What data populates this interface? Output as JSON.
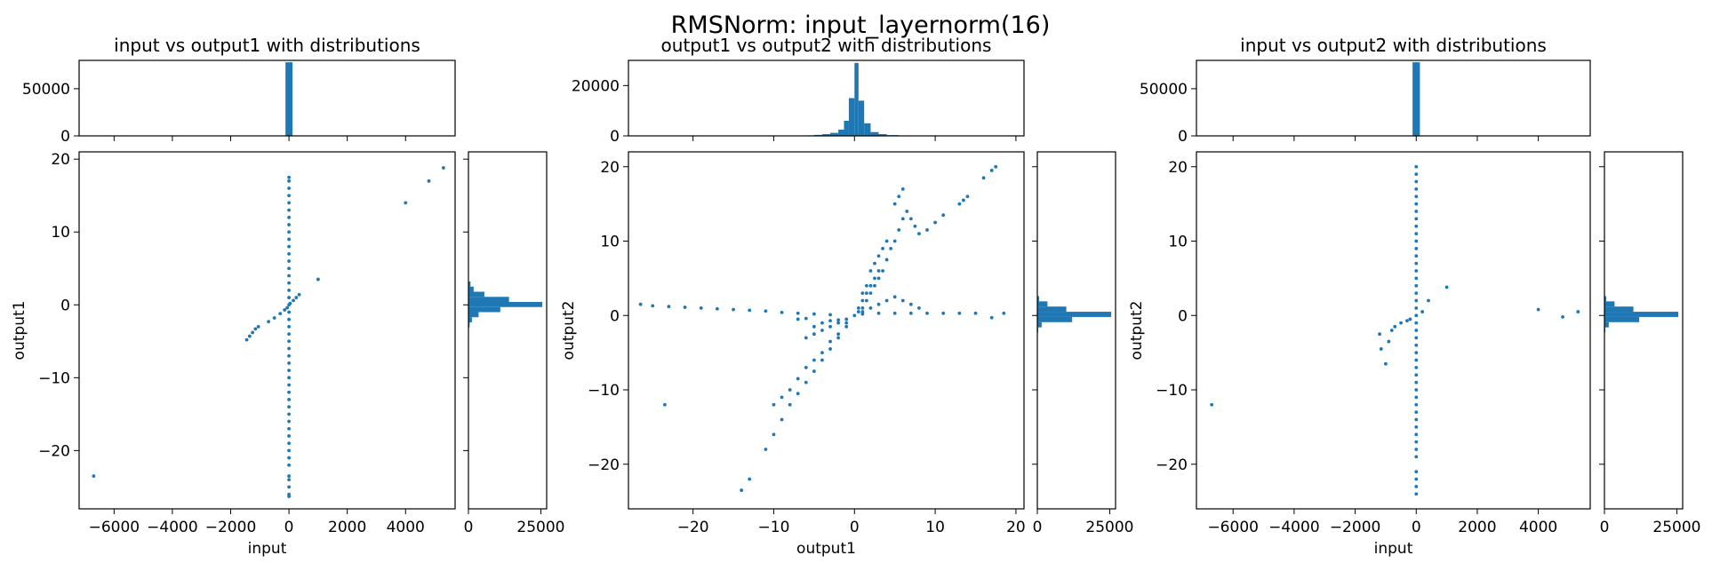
{
  "figure": {
    "title": "RMSNorm: input_layernorm(16)"
  },
  "chart_data": [
    {
      "type": "scatter",
      "title": "input vs output1 with distributions",
      "xlabel": "input",
      "ylabel": "output1",
      "xlim": [
        -7200,
        5700
      ],
      "ylim": [
        -28,
        21
      ],
      "xticks": [
        -6000,
        -4000,
        -2000,
        0,
        2000,
        4000
      ],
      "xtick_labels": [
        "−6000",
        "−4000",
        "−2000",
        "0",
        "2000",
        "4000"
      ],
      "yticks": [
        -20,
        -10,
        0,
        10,
        20
      ],
      "ytick_labels": [
        "−20",
        "−10",
        "0",
        "10",
        "20"
      ],
      "points": [
        [
          -6700,
          -23.5
        ],
        [
          -1450,
          -4.8
        ],
        [
          -1350,
          -4.3
        ],
        [
          -1250,
          -3.8
        ],
        [
          -1150,
          -3.3
        ],
        [
          -1050,
          -3.0
        ],
        [
          -700,
          -2.3
        ],
        [
          -500,
          -1.8
        ],
        [
          -300,
          -1.2
        ],
        [
          -150,
          -0.7
        ],
        [
          -60,
          -0.4
        ],
        [
          40,
          0.2
        ],
        [
          150,
          0.6
        ],
        [
          250,
          1.0
        ],
        [
          350,
          1.4
        ],
        [
          1000,
          3.5
        ],
        [
          4000,
          14.0
        ],
        [
          4800,
          17.0
        ],
        [
          5300,
          18.8
        ],
        [
          0,
          -26.3
        ],
        [
          0,
          -26
        ],
        [
          0,
          -25
        ],
        [
          0,
          -24
        ],
        [
          0,
          -23.5
        ],
        [
          0,
          -22
        ],
        [
          0,
          -21
        ],
        [
          0,
          -20
        ],
        [
          0,
          -19
        ],
        [
          0,
          -18
        ],
        [
          0,
          -17
        ],
        [
          0,
          -16
        ],
        [
          0,
          -15
        ],
        [
          0,
          -14
        ],
        [
          0,
          -13
        ],
        [
          0,
          -12
        ],
        [
          0,
          -11
        ],
        [
          0,
          -10
        ],
        [
          0,
          -9
        ],
        [
          0,
          -8
        ],
        [
          0,
          -7
        ],
        [
          0,
          -6
        ],
        [
          0,
          -5
        ],
        [
          0,
          -4
        ],
        [
          0,
          -3
        ],
        [
          0,
          -2
        ],
        [
          0,
          -1
        ],
        [
          0,
          0
        ],
        [
          0,
          1
        ],
        [
          0,
          2
        ],
        [
          0,
          3
        ],
        [
          0,
          4
        ],
        [
          0,
          5
        ],
        [
          0,
          6
        ],
        [
          0,
          7
        ],
        [
          0,
          8
        ],
        [
          0,
          9
        ],
        [
          0,
          10
        ],
        [
          0,
          11
        ],
        [
          0,
          12
        ],
        [
          0,
          13
        ],
        [
          0,
          14
        ],
        [
          0,
          15
        ],
        [
          0,
          16
        ],
        [
          0,
          17
        ],
        [
          0,
          17.5
        ]
      ],
      "top_hist": {
        "ylim": [
          0,
          80000
        ],
        "yticks": [
          0,
          50000
        ],
        "ytick_labels": [
          "0",
          "50000"
        ],
        "bins": [
          [
            -120,
            120,
            78000
          ]
        ]
      },
      "side_hist": {
        "xlim": [
          0,
          27000
        ],
        "xticks": [
          0,
          25000
        ],
        "xtick_labels": [
          "0",
          "25000"
        ],
        "bins": [
          [
            2.5,
            3.2,
            700
          ],
          [
            1.8,
            2.5,
            1800
          ],
          [
            1.1,
            1.8,
            5500
          ],
          [
            0.4,
            1.1,
            14000
          ],
          [
            -0.3,
            0.4,
            25500
          ],
          [
            -1.0,
            -0.3,
            11000
          ],
          [
            -1.7,
            -1.0,
            3500
          ],
          [
            -2.4,
            -1.7,
            1200
          ],
          [
            -3.1,
            -2.4,
            400
          ]
        ]
      }
    },
    {
      "type": "scatter",
      "title": "output1 vs output2 with distributions",
      "xlabel": "output1",
      "ylabel": "output2",
      "xlim": [
        -28,
        21
      ],
      "ylim": [
        -26,
        22
      ],
      "xticks": [
        -20,
        -10,
        0,
        10,
        20
      ],
      "xtick_labels": [
        "−20",
        "−10",
        "0",
        "10",
        "20"
      ],
      "yticks": [
        -20,
        -10,
        0,
        10,
        20
      ],
      "ytick_labels": [
        "−20",
        "−10",
        "0",
        "10",
        "20"
      ],
      "points": [
        [
          -26.5,
          1.5
        ],
        [
          -25,
          1.3
        ],
        [
          -23,
          1.2
        ],
        [
          -21,
          1.1
        ],
        [
          -19,
          1.0
        ],
        [
          -17,
          0.9
        ],
        [
          -15,
          0.8
        ],
        [
          -13,
          0.7
        ],
        [
          -11,
          0.6
        ],
        [
          -9,
          0.4
        ],
        [
          -7,
          0.3
        ],
        [
          -5,
          0.2
        ],
        [
          -3,
          0.1
        ],
        [
          -23.5,
          -12
        ],
        [
          -14,
          -23.5
        ],
        [
          -13,
          -22
        ],
        [
          -11,
          -18
        ],
        [
          -10,
          -16
        ],
        [
          -9,
          -14
        ],
        [
          -8,
          -12
        ],
        [
          -7,
          -10.5
        ],
        [
          -6,
          -9
        ],
        [
          -5,
          -7.5
        ],
        [
          -4,
          -6
        ],
        [
          -3,
          -4.5
        ],
        [
          -2,
          -3
        ],
        [
          -1,
          -1.5
        ],
        [
          -10,
          -12
        ],
        [
          -9,
          -11
        ],
        [
          -8,
          -10
        ],
        [
          -7,
          -8.5
        ],
        [
          -6,
          -7
        ],
        [
          -5,
          -6
        ],
        [
          -4,
          -5
        ],
        [
          -3,
          -3.5
        ],
        [
          -2,
          -2.5
        ],
        [
          -1,
          -1
        ],
        [
          -6,
          -3
        ],
        [
          -5,
          -2.5
        ],
        [
          -4,
          -2
        ],
        [
          -3,
          -1.5
        ],
        [
          -2,
          -1
        ],
        [
          -1,
          -0.5
        ],
        [
          -7,
          -0.5
        ],
        [
          -6,
          -0.4
        ],
        [
          -5,
          -1.5
        ],
        [
          -4,
          -1
        ],
        [
          -3,
          -0.7
        ],
        [
          -2,
          -0.6
        ],
        [
          0,
          0
        ],
        [
          0.5,
          0.5
        ],
        [
          1,
          1
        ],
        [
          1.5,
          2
        ],
        [
          2,
          3
        ],
        [
          2.5,
          4
        ],
        [
          3,
          5
        ],
        [
          3.5,
          6
        ],
        [
          4,
          7.5
        ],
        [
          4.5,
          9
        ],
        [
          5,
          10
        ],
        [
          5.5,
          11.5
        ],
        [
          6,
          13
        ],
        [
          0.5,
          1
        ],
        [
          1,
          2
        ],
        [
          1.5,
          3
        ],
        [
          2,
          4
        ],
        [
          2.5,
          5
        ],
        [
          3,
          6
        ],
        [
          1,
          0.5
        ],
        [
          2,
          1
        ],
        [
          3,
          1.5
        ],
        [
          4,
          2
        ],
        [
          5,
          2.5
        ],
        [
          6,
          2
        ],
        [
          7,
          1.5
        ],
        [
          8,
          1
        ],
        [
          1,
          0.2
        ],
        [
          3,
          0.3
        ],
        [
          5,
          0.3
        ],
        [
          7,
          0.3
        ],
        [
          9,
          0.3
        ],
        [
          11,
          0.3
        ],
        [
          13,
          0.3
        ],
        [
          15,
          0.3
        ],
        [
          17,
          -0.3
        ],
        [
          18.5,
          0.3
        ],
        [
          5,
          15
        ],
        [
          5.5,
          16
        ],
        [
          6,
          17
        ],
        [
          6.5,
          14
        ],
        [
          7,
          13
        ],
        [
          7.5,
          12
        ],
        [
          8,
          11
        ],
        [
          9,
          11.5
        ],
        [
          10,
          12.5
        ],
        [
          11,
          13.5
        ],
        [
          13,
          15
        ],
        [
          13.5,
          15.5
        ],
        [
          14,
          16
        ],
        [
          16,
          18.5
        ],
        [
          17,
          19.5
        ],
        [
          17.5,
          20
        ],
        [
          2,
          6
        ],
        [
          2.5,
          7
        ],
        [
          3,
          8
        ],
        [
          3.5,
          9
        ],
        [
          4,
          10
        ],
        [
          1,
          3
        ],
        [
          1.5,
          4
        ]
      ],
      "top_hist": {
        "ylim": [
          0,
          30000
        ],
        "yticks": [
          0,
          20000
        ],
        "ytick_labels": [
          "0",
          "20000"
        ],
        "bins": [
          [
            -6,
            -5,
            200
          ],
          [
            -5,
            -4,
            400
          ],
          [
            -4,
            -3,
            700
          ],
          [
            -3,
            -2,
            1200
          ],
          [
            -2,
            -1.3,
            2500
          ],
          [
            -1.3,
            -0.7,
            6000
          ],
          [
            -0.7,
            0,
            15000
          ],
          [
            0,
            0.5,
            29000
          ],
          [
            0.5,
            1.2,
            14000
          ],
          [
            1.2,
            2,
            5000
          ],
          [
            2,
            3,
            1500
          ],
          [
            3,
            4,
            700
          ],
          [
            4,
            5.5,
            300
          ]
        ]
      },
      "side_hist": {
        "xlim": [
          0,
          27000
        ],
        "xticks": [
          0,
          25000
        ],
        "xtick_labels": [
          "0",
          "25000"
        ],
        "bins": [
          [
            1.9,
            2.6,
            600
          ],
          [
            1.2,
            1.9,
            3500
          ],
          [
            0.5,
            1.2,
            10000
          ],
          [
            -0.2,
            0.5,
            25500
          ],
          [
            -0.9,
            -0.2,
            12000
          ],
          [
            -1.6,
            -0.9,
            1500
          ],
          [
            -2.3,
            -1.6,
            300
          ]
        ]
      }
    },
    {
      "type": "scatter",
      "title": "input vs output2 with distributions",
      "xlabel": "input",
      "ylabel": "output2",
      "xlim": [
        -7200,
        5700
      ],
      "ylim": [
        -26,
        22
      ],
      "xticks": [
        -6000,
        -4000,
        -2000,
        0,
        2000,
        4000
      ],
      "xtick_labels": [
        "−6000",
        "−4000",
        "−2000",
        "0",
        "2000",
        "4000"
      ],
      "yticks": [
        -20,
        -10,
        0,
        10,
        20
      ],
      "ytick_labels": [
        "−20",
        "−10",
        "0",
        "10",
        "20"
      ],
      "points": [
        [
          -6700,
          -12
        ],
        [
          -1200,
          -2.5
        ],
        [
          -1150,
          -4.5
        ],
        [
          -1000,
          -6.5
        ],
        [
          -900,
          -3.5
        ],
        [
          -800,
          -2
        ],
        [
          -700,
          -1.5
        ],
        [
          -500,
          -1
        ],
        [
          -300,
          -0.7
        ],
        [
          -200,
          -0.5
        ],
        [
          200,
          0.5
        ],
        [
          400,
          2
        ],
        [
          1000,
          3.8
        ],
        [
          4000,
          0.8
        ],
        [
          4800,
          -0.2
        ],
        [
          5300,
          0.5
        ],
        [
          0,
          -24
        ],
        [
          0,
          -23
        ],
        [
          0,
          -22
        ],
        [
          0,
          -21
        ],
        [
          0,
          -19
        ],
        [
          0,
          -18
        ],
        [
          0,
          -17
        ],
        [
          0,
          -16
        ],
        [
          0,
          -15
        ],
        [
          0,
          -14
        ],
        [
          0,
          -13
        ],
        [
          0,
          -12
        ],
        [
          0,
          -11
        ],
        [
          0,
          -10
        ],
        [
          0,
          -9
        ],
        [
          0,
          -8
        ],
        [
          0,
          -7
        ],
        [
          0,
          -6
        ],
        [
          0,
          -5
        ],
        [
          0,
          -4
        ],
        [
          0,
          -3
        ],
        [
          0,
          -2
        ],
        [
          0,
          -1
        ],
        [
          0,
          0
        ],
        [
          0,
          1
        ],
        [
          0,
          2
        ],
        [
          0,
          3
        ],
        [
          0,
          4
        ],
        [
          0,
          5
        ],
        [
          0,
          6
        ],
        [
          0,
          7
        ],
        [
          0,
          8
        ],
        [
          0,
          9
        ],
        [
          0,
          10
        ],
        [
          0,
          11
        ],
        [
          0,
          12
        ],
        [
          0,
          13
        ],
        [
          0,
          14
        ],
        [
          0,
          15
        ],
        [
          0,
          16
        ],
        [
          0,
          17
        ],
        [
          0,
          18
        ],
        [
          0,
          19
        ],
        [
          0,
          20
        ]
      ],
      "top_hist": {
        "ylim": [
          0,
          80000
        ],
        "yticks": [
          0,
          50000
        ],
        "ytick_labels": [
          "0",
          "50000"
        ],
        "bins": [
          [
            -120,
            120,
            78000
          ]
        ]
      },
      "side_hist": {
        "xlim": [
          0,
          27000
        ],
        "xticks": [
          0,
          25000
        ],
        "xtick_labels": [
          "0",
          "25000"
        ],
        "bins": [
          [
            1.9,
            2.6,
            600
          ],
          [
            1.2,
            1.9,
            3500
          ],
          [
            0.5,
            1.2,
            10000
          ],
          [
            -0.2,
            0.5,
            25500
          ],
          [
            -0.9,
            -0.2,
            12000
          ],
          [
            -1.6,
            -0.9,
            1500
          ],
          [
            -2.3,
            -1.6,
            300
          ]
        ]
      }
    }
  ]
}
